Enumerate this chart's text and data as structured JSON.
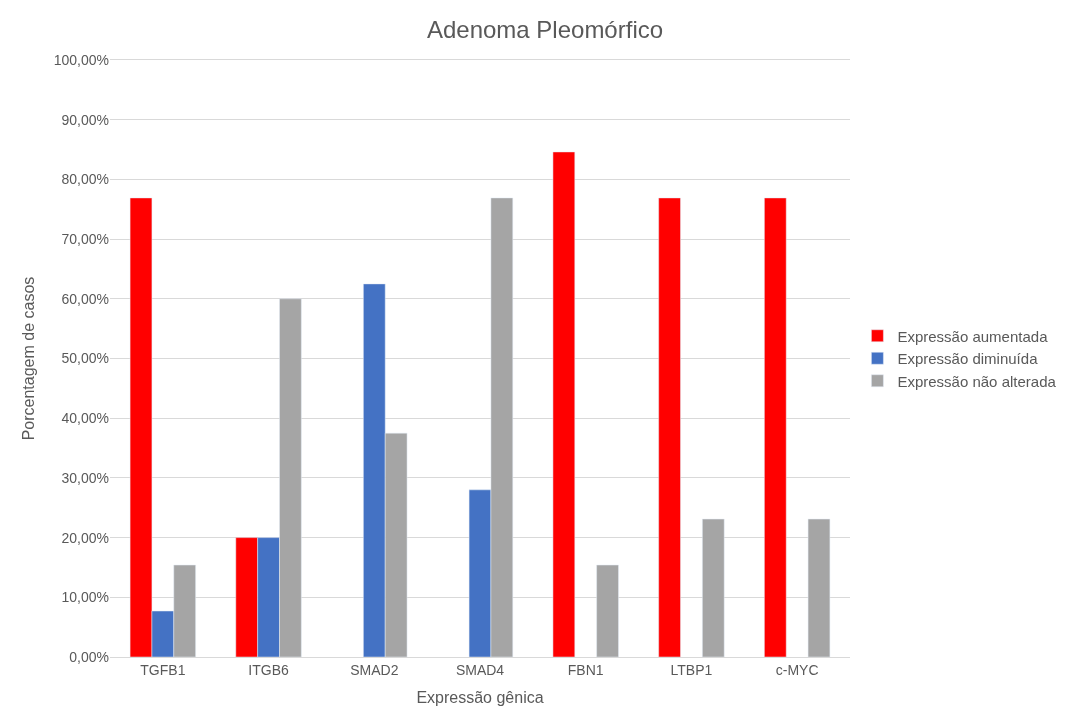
{
  "chart_data": {
    "type": "bar",
    "title": "Adenoma Pleomórfico",
    "xlabel": "Expressão gênica",
    "ylabel": "Porcentagem de casos",
    "categories": [
      "TGFB1",
      "ITGB6",
      "SMAD2",
      "SMAD4",
      "FBN1",
      "LTBP1",
      "c-MYC"
    ],
    "series": [
      {
        "name": "Expressão aumentada",
        "color": "#ff0000",
        "values": [
          76.9,
          20,
          null,
          null,
          84.6,
          76.9,
          76.9
        ]
      },
      {
        "name": "Expressão diminuída",
        "color": "#4472c4",
        "values": [
          7.7,
          20,
          62.5,
          28,
          null,
          null,
          null
        ]
      },
      {
        "name": "Expressão não alterada",
        "color": "#a5a5a5",
        "values": [
          15.4,
          60,
          37.5,
          76.9,
          15.4,
          23.1,
          23.1
        ]
      }
    ],
    "ylim": [
      0,
      100
    ],
    "yticks": [
      {
        "value": 0,
        "label": "0,00%"
      },
      {
        "value": 10,
        "label": "10,00%"
      },
      {
        "value": 20,
        "label": "20,00%"
      },
      {
        "value": 30,
        "label": "30,00%"
      },
      {
        "value": 40,
        "label": "40,00%"
      },
      {
        "value": 50,
        "label": "50,00%"
      },
      {
        "value": 60,
        "label": "60,00%"
      },
      {
        "value": 70,
        "label": "70,00%"
      },
      {
        "value": 80,
        "label": "80,00%"
      },
      {
        "value": 90,
        "label": "90,00%"
      },
      {
        "value": 100,
        "label": "100,00%"
      }
    ],
    "grid": "y",
    "legend": "right"
  }
}
